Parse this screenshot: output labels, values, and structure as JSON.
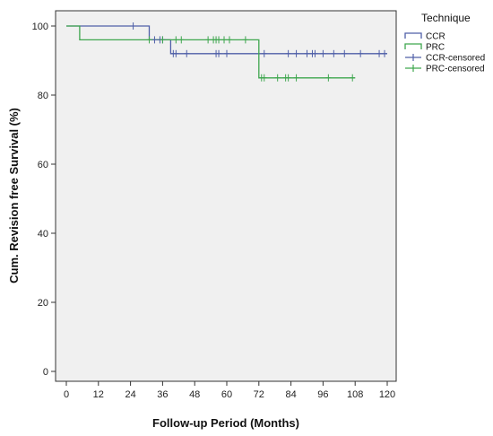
{
  "chart_data": {
    "type": "line",
    "title": "",
    "xlabel": "Follow-up Period (Months)",
    "ylabel": "Cum. Revision free Survival (%)",
    "xlim": [
      0,
      120
    ],
    "ylim": [
      0,
      100
    ],
    "xticks": [
      0,
      12,
      24,
      36,
      48,
      60,
      72,
      84,
      96,
      108,
      120
    ],
    "yticks": [
      0,
      20,
      40,
      60,
      80,
      100
    ],
    "grid": false,
    "legend_title": "Technique",
    "legend_position": "right",
    "background": "#f0f0f0",
    "series": [
      {
        "name": "CCR",
        "color": "#4f5fa8",
        "steps": [
          [
            0,
            100
          ],
          [
            31,
            100
          ],
          [
            31,
            96
          ],
          [
            39,
            96
          ],
          [
            39,
            92
          ],
          [
            120,
            92
          ]
        ]
      },
      {
        "name": "PRC",
        "color": "#3ea64e",
        "steps": [
          [
            0,
            100
          ],
          [
            5,
            100
          ],
          [
            5,
            96
          ],
          [
            72,
            96
          ],
          [
            72,
            85
          ],
          [
            108,
            85
          ]
        ]
      }
    ],
    "censored": [
      {
        "name": "CCR-censored",
        "color": "#4f5fa8",
        "points": [
          [
            25,
            100
          ],
          [
            33,
            96
          ],
          [
            35,
            96
          ],
          [
            36,
            96
          ],
          [
            40,
            92
          ],
          [
            41,
            92
          ],
          [
            45,
            92
          ],
          [
            56,
            92
          ],
          [
            57,
            92
          ],
          [
            60,
            92
          ],
          [
            74,
            92
          ],
          [
            83,
            92
          ],
          [
            86,
            92
          ],
          [
            90,
            92
          ],
          [
            92,
            92
          ],
          [
            93,
            92
          ],
          [
            96,
            92
          ],
          [
            100,
            92
          ],
          [
            104,
            92
          ],
          [
            110,
            92
          ],
          [
            117,
            92
          ],
          [
            119,
            92
          ]
        ]
      },
      {
        "name": "PRC-censored",
        "color": "#3ea64e",
        "points": [
          [
            31,
            96
          ],
          [
            36,
            96
          ],
          [
            41,
            96
          ],
          [
            43,
            96
          ],
          [
            53,
            96
          ],
          [
            55,
            96
          ],
          [
            56,
            96
          ],
          [
            57,
            96
          ],
          [
            59,
            96
          ],
          [
            61,
            96
          ],
          [
            67,
            96
          ],
          [
            73,
            85
          ],
          [
            74,
            85
          ],
          [
            79,
            85
          ],
          [
            82,
            85
          ],
          [
            83,
            85
          ],
          [
            86,
            85
          ],
          [
            98,
            85
          ],
          [
            107,
            85
          ]
        ]
      }
    ]
  }
}
